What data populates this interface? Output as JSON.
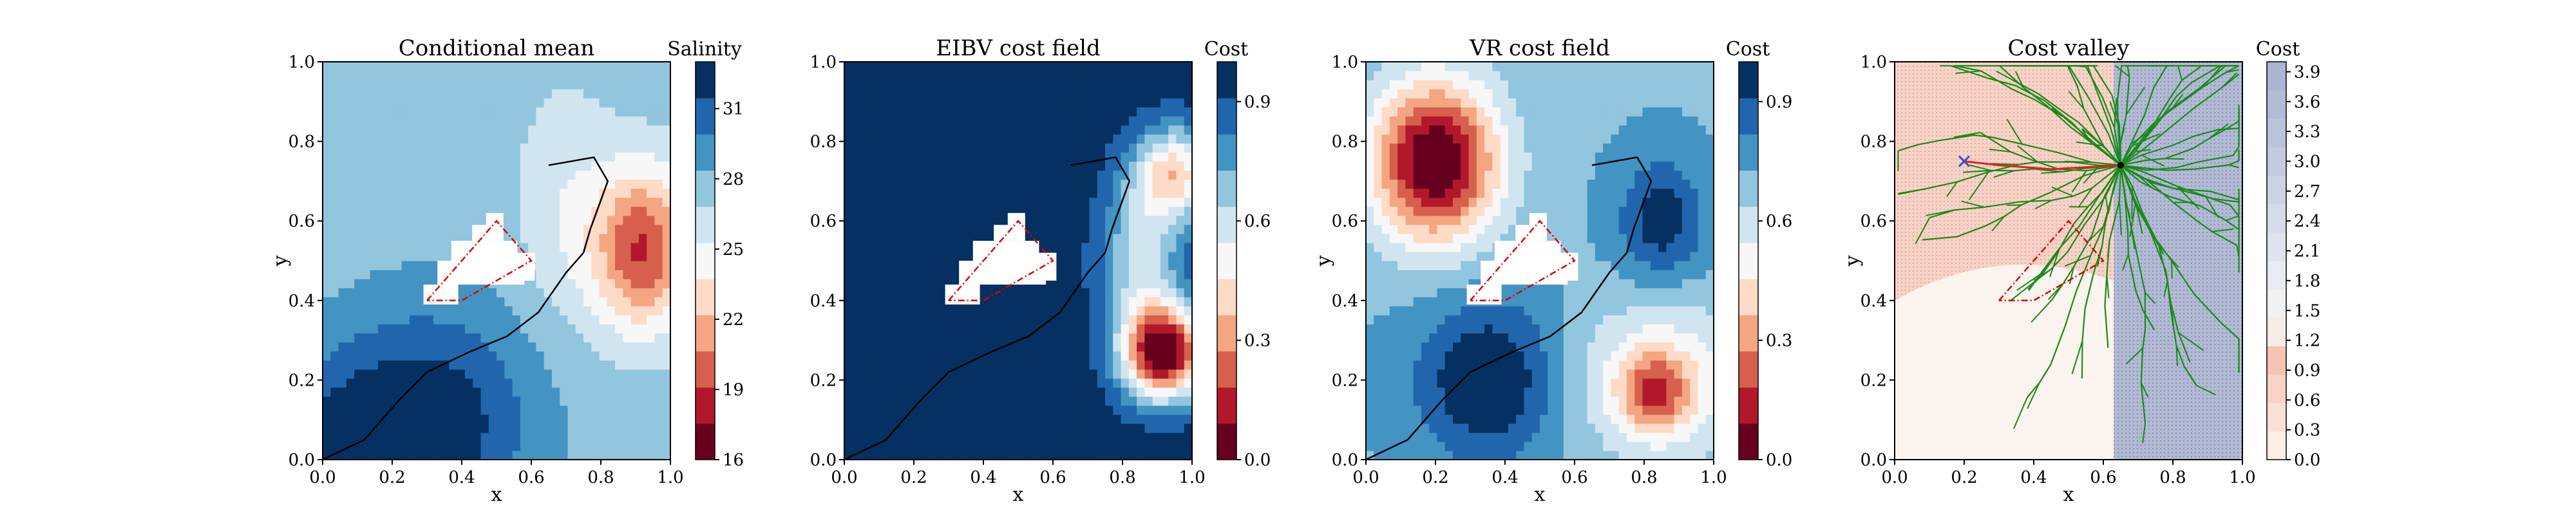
{
  "colors": {
    "rdbu": [
      "#67001f",
      "#b2182b",
      "#d6604d",
      "#f4a582",
      "#fddbc7",
      "#f7f7f7",
      "#d1e5f0",
      "#92c5de",
      "#4393c3",
      "#2166ac",
      "#053061"
    ],
    "path": "#000000",
    "polygon": "#dd0000",
    "tree": "#1a8a1a",
    "valley_red": "#f4b6a8",
    "valley_blue": "#9aa6c8",
    "marker": "#3050c0"
  },
  "chart_data": [
    {
      "type": "heatmap",
      "title": "Conditional mean",
      "xlabel": "x",
      "ylabel": "y",
      "xlim": [
        0,
        1
      ],
      "ylim": [
        0,
        1
      ],
      "xticks": [
        "0.0",
        "0.2",
        "0.4",
        "0.6",
        "0.8",
        "1.0"
      ],
      "yticks": [
        "0.0",
        "0.2",
        "0.4",
        "0.6",
        "0.8",
        "1.0"
      ],
      "colorbar": {
        "label": "Salinity",
        "range": [
          16,
          33
        ],
        "ticks": [
          16,
          19,
          22,
          25,
          28,
          31
        ],
        "levels": 11
      },
      "path": [
        [
          0.0,
          0.0
        ],
        [
          0.12,
          0.05
        ],
        [
          0.22,
          0.15
        ],
        [
          0.3,
          0.22
        ],
        [
          0.42,
          0.27
        ],
        [
          0.53,
          0.31
        ],
        [
          0.62,
          0.37
        ],
        [
          0.7,
          0.47
        ],
        [
          0.75,
          0.52
        ],
        [
          0.77,
          0.58
        ],
        [
          0.82,
          0.7
        ],
        [
          0.78,
          0.76
        ],
        [
          0.65,
          0.74
        ]
      ],
      "polygon": [
        [
          0.3,
          0.4
        ],
        [
          0.5,
          0.6
        ],
        [
          0.6,
          0.5
        ],
        [
          0.4,
          0.4
        ]
      ]
    },
    {
      "type": "heatmap",
      "title": "EIBV cost field",
      "xlabel": "x",
      "ylabel": "",
      "xlim": [
        0,
        1
      ],
      "ylim": [
        0,
        1
      ],
      "xticks": [
        "0.0",
        "0.2",
        "0.4",
        "0.6",
        "0.8",
        "1.0"
      ],
      "yticks": [
        "0.0",
        "0.2",
        "0.4",
        "0.6",
        "0.8",
        "1.0"
      ],
      "colorbar": {
        "label": "Cost",
        "range": [
          0,
          1
        ],
        "ticks": [
          0.0,
          0.3,
          0.6,
          0.9
        ],
        "levels": 11
      },
      "path": [
        [
          0.0,
          0.0
        ],
        [
          0.12,
          0.05
        ],
        [
          0.22,
          0.15
        ],
        [
          0.3,
          0.22
        ],
        [
          0.42,
          0.27
        ],
        [
          0.53,
          0.31
        ],
        [
          0.62,
          0.37
        ],
        [
          0.7,
          0.47
        ],
        [
          0.75,
          0.52
        ],
        [
          0.77,
          0.58
        ],
        [
          0.82,
          0.7
        ],
        [
          0.78,
          0.76
        ],
        [
          0.65,
          0.74
        ]
      ],
      "polygon": [
        [
          0.3,
          0.4
        ],
        [
          0.5,
          0.6
        ],
        [
          0.6,
          0.5
        ],
        [
          0.4,
          0.4
        ]
      ]
    },
    {
      "type": "heatmap",
      "title": "VR cost field",
      "xlabel": "x",
      "ylabel": "y",
      "xlim": [
        0,
        1
      ],
      "ylim": [
        0,
        1
      ],
      "xticks": [
        "0.0",
        "0.2",
        "0.4",
        "0.6",
        "0.8",
        "1.0"
      ],
      "yticks": [
        "0.0",
        "0.2",
        "0.4",
        "0.6",
        "0.8",
        "1.0"
      ],
      "colorbar": {
        "label": "Cost",
        "range": [
          0,
          1
        ],
        "ticks": [
          0.0,
          0.3,
          0.6,
          0.9
        ],
        "levels": 11
      },
      "path": [
        [
          0.0,
          0.0
        ],
        [
          0.12,
          0.05
        ],
        [
          0.22,
          0.15
        ],
        [
          0.3,
          0.22
        ],
        [
          0.42,
          0.27
        ],
        [
          0.53,
          0.31
        ],
        [
          0.62,
          0.37
        ],
        [
          0.7,
          0.47
        ],
        [
          0.75,
          0.52
        ],
        [
          0.77,
          0.58
        ],
        [
          0.82,
          0.7
        ],
        [
          0.78,
          0.76
        ],
        [
          0.65,
          0.74
        ]
      ],
      "polygon": [
        [
          0.3,
          0.4
        ],
        [
          0.5,
          0.6
        ],
        [
          0.6,
          0.5
        ],
        [
          0.4,
          0.4
        ]
      ]
    },
    {
      "type": "heatmap",
      "title": "Cost valley",
      "xlabel": "x",
      "ylabel": "y",
      "xlim": [
        0,
        1
      ],
      "ylim": [
        0,
        1
      ],
      "xticks": [
        "0.0",
        "0.2",
        "0.4",
        "0.6",
        "0.8",
        "1.0"
      ],
      "yticks": [
        "0.0",
        "0.2",
        "0.4",
        "0.6",
        "0.8",
        "1.0"
      ],
      "colorbar": {
        "label": "Cost",
        "range": [
          0,
          4.0
        ],
        "ticks": [
          "0.0",
          "0.3",
          "0.6",
          "0.9",
          "1.2",
          "1.5",
          "1.8",
          "2.1",
          "2.4",
          "2.7",
          "3.0",
          "3.3",
          "3.6",
          "3.9"
        ],
        "levels": 14
      },
      "tree_root": [
        0.65,
        0.74
      ],
      "best_path": [
        [
          0.65,
          0.74
        ],
        [
          0.45,
          0.73
        ],
        [
          0.3,
          0.74
        ],
        [
          0.2,
          0.75
        ]
      ],
      "marker": [
        0.2,
        0.75
      ],
      "polygon": [
        [
          0.3,
          0.4
        ],
        [
          0.5,
          0.6
        ],
        [
          0.6,
          0.5
        ],
        [
          0.4,
          0.4
        ]
      ]
    }
  ]
}
